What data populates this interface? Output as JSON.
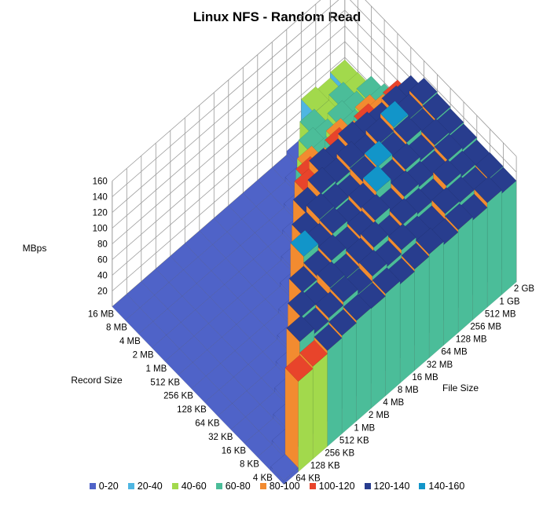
{
  "chart_data": {
    "type": "surface",
    "title": "Linux NFS - Random Read",
    "zlabel": "MBps",
    "xlabel": "File Size",
    "ylabel": "Record Size",
    "zlim": [
      0,
      160
    ],
    "z_ticks": [
      "20",
      "40",
      "60",
      "80",
      "100",
      "120",
      "140",
      "160"
    ],
    "file_sizes": [
      "64 KB",
      "128 KB",
      "256 KB",
      "512 KB",
      "1 MB",
      "2 MB",
      "4 MB",
      "8 MB",
      "16 MB",
      "32 MB",
      "64 MB",
      "128 MB",
      "256 MB",
      "512 MB",
      "1 GB",
      "2 GB"
    ],
    "record_sizes": [
      "4 KB",
      "8 KB",
      "16 KB",
      "32 KB",
      "64 KB",
      "128 KB",
      "256 KB",
      "512 KB",
      "1 MB",
      "2 MB",
      "4 MB",
      "8 MB",
      "16 MB"
    ],
    "values": [
      [
        5,
        115,
        118,
        122,
        125,
        128,
        127,
        130,
        126,
        129,
        132,
        128,
        131,
        127,
        133,
        129
      ],
      [
        null,
        5,
        132,
        126,
        130,
        134,
        128,
        135,
        131,
        136,
        130,
        127,
        134,
        132,
        128,
        130
      ],
      [
        null,
        null,
        5,
        130,
        125,
        135,
        129,
        133,
        138,
        130,
        135,
        132,
        128,
        136,
        131,
        129
      ],
      [
        null,
        null,
        null,
        5,
        128,
        132,
        136,
        130,
        134,
        139,
        131,
        137,
        133,
        130,
        135,
        132
      ],
      [
        null,
        null,
        null,
        null,
        5,
        140,
        133,
        137,
        131,
        136,
        142,
        134,
        138,
        133,
        137,
        134
      ],
      [
        null,
        null,
        null,
        null,
        null,
        5,
        130,
        138,
        134,
        129,
        137,
        140,
        135,
        139,
        133,
        136
      ],
      [
        null,
        null,
        null,
        null,
        null,
        null,
        5,
        128,
        137,
        133,
        138,
        131,
        136,
        141,
        134,
        138
      ],
      [
        null,
        null,
        null,
        null,
        null,
        null,
        null,
        5,
        118,
        128,
        124,
        130,
        126,
        122,
        127,
        124
      ],
      [
        null,
        null,
        null,
        null,
        null,
        null,
        null,
        null,
        5,
        100,
        96,
        105,
        98,
        103,
        99,
        101
      ],
      [
        null,
        null,
        null,
        null,
        null,
        null,
        null,
        null,
        null,
        5,
        80,
        76,
        83,
        78,
        81,
        79
      ],
      [
        null,
        null,
        null,
        null,
        null,
        null,
        null,
        null,
        null,
        null,
        5,
        70,
        65,
        72,
        68,
        71
      ],
      [
        null,
        null,
        null,
        null,
        null,
        null,
        null,
        null,
        null,
        null,
        null,
        5,
        60,
        55,
        62,
        58
      ],
      [
        null,
        null,
        null,
        null,
        null,
        null,
        null,
        null,
        null,
        null,
        null,
        null,
        5,
        55,
        50,
        57
      ]
    ],
    "series": [
      {
        "name": "0-20",
        "color": "#4f63c8"
      },
      {
        "name": "20-40",
        "color": "#4fb6e2"
      },
      {
        "name": "40-60",
        "color": "#a2d94c"
      },
      {
        "name": "60-80",
        "color": "#4bbd99"
      },
      {
        "name": "80-100",
        "color": "#f28b30"
      },
      {
        "name": "100-120",
        "color": "#e8442b"
      },
      {
        "name": "120-140",
        "color": "#283d8e"
      },
      {
        "name": "140-160",
        "color": "#1295c9"
      }
    ]
  }
}
